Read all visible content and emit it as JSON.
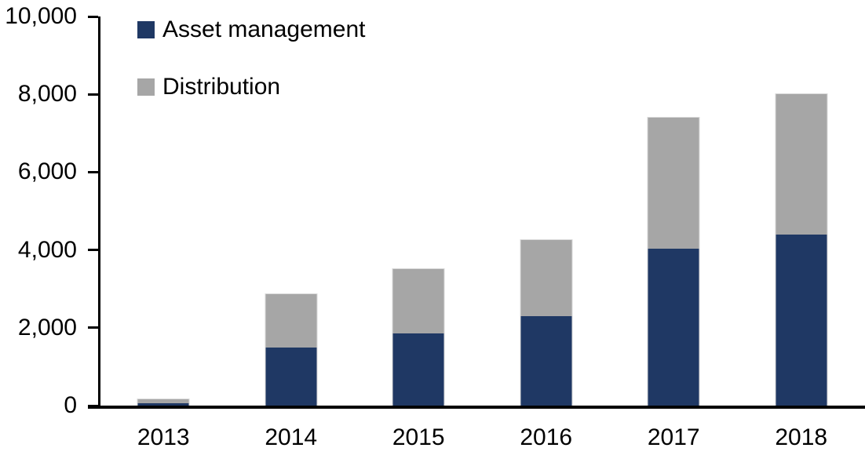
{
  "chart_data": {
    "type": "bar",
    "stacked": true,
    "title": "",
    "xlabel": "",
    "ylabel": "",
    "categories": [
      "2013",
      "2014",
      "2015",
      "2016",
      "2017",
      "2018"
    ],
    "series": [
      {
        "name": "Asset management",
        "color": "#1F3864",
        "values": [
          60,
          1500,
          1850,
          2300,
          4025,
          4400
        ]
      },
      {
        "name": "Distribution",
        "color": "#A6A6A6",
        "values": [
          100,
          1370,
          1650,
          1950,
          3375,
          3600
        ]
      }
    ],
    "totals": [
      160,
      2870,
      3500,
      4250,
      7400,
      8000
    ],
    "ylim": [
      0,
      10000
    ],
    "ytick_interval": 2000,
    "ytick_labels": [
      "0",
      "2,000",
      "4,000",
      "6,000",
      "8,000",
      "10,000"
    ],
    "grid": false,
    "legend_position": "top-left",
    "axis_color": "#000000"
  }
}
